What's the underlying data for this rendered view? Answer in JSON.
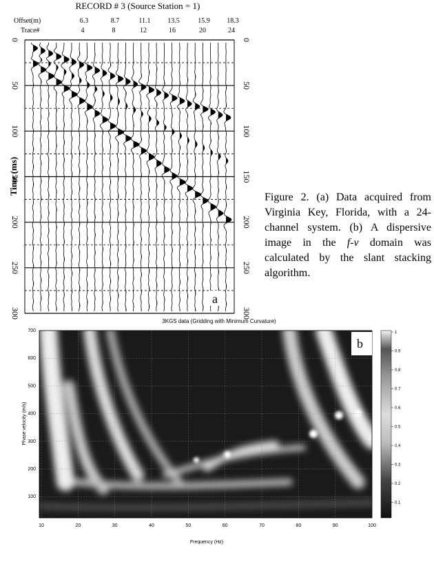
{
  "figure_a": {
    "title": "RECORD # 3 (Source Station = 1)",
    "offset_label": "Offset(m)",
    "offsets": [
      "6.3",
      "8.7",
      "11.1",
      "13.5",
      "15.9",
      "18.3"
    ],
    "trace_label": "Trace#",
    "traces": [
      "4",
      "8",
      "12",
      "16",
      "20",
      "24"
    ],
    "y_label": "Time (ms)",
    "time_ticks": [
      "0",
      "50",
      "100",
      "150",
      "200",
      "250",
      "300"
    ],
    "panel_label": "a"
  },
  "caption": {
    "before": "Figure 2. (a) Data acquired from Virginia Key, Florida, with a 24-channel system. (b) A dispersive image in the ",
    "italic": "f-v",
    "after": " domain was calculated by the slant stacking algorithm."
  },
  "figure_b": {
    "title": "3KGS data (Gridding with Minimum Curvature)",
    "y_label": "Phase velocity (m/s)",
    "yticks": [
      "700",
      "600",
      "500",
      "400",
      "300",
      "200",
      "100"
    ],
    "x_label": "Frequency (Hz)",
    "xticks": [
      "10",
      "20",
      "30",
      "40",
      "50",
      "60",
      "70",
      "80",
      "90",
      "100"
    ],
    "colorbar_ticks": [
      "1",
      "0.9",
      "0.8",
      "0.7",
      "0.6",
      "0.5",
      "0.4",
      "0.3",
      "0.2",
      "0.1"
    ],
    "panel_label": "b"
  }
}
